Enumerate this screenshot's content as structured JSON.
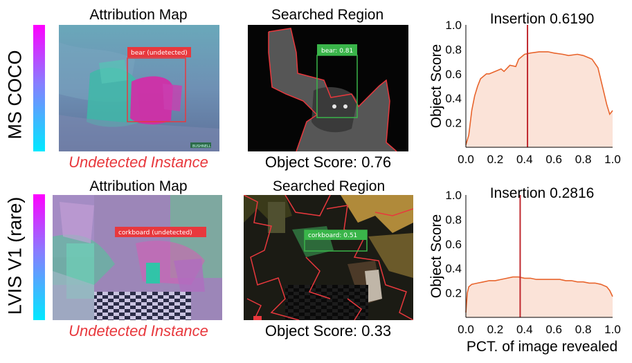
{
  "rows": [
    {
      "label": "MS COCO",
      "attr_title": "Attribution Map",
      "search_title": "Searched Region",
      "attr_box_label": "bear (undetected)",
      "search_box_label": "bear: 0.81",
      "attr_caption": "Undetected Instance",
      "search_caption": "Object Score: 0.76",
      "watermark": "BUSHNELL"
    },
    {
      "label": "LVIS V1 (rare)",
      "attr_title": "Attribution Map",
      "search_title": "Searched Region",
      "attr_box_label": "corkboard (undetected)",
      "search_box_label": "corkboard: 0.51",
      "attr_caption": "Undetected Instance",
      "search_caption": "Object Score: 0.33",
      "watermark": ""
    }
  ],
  "colors": {
    "accent_red": "#e8383d",
    "box_green": "#3ab54a",
    "curve": "#e8642c",
    "fill": "#fbe3d8",
    "vline": "#c0282e"
  },
  "chart_data": [
    {
      "type": "area",
      "title": "Insertion 0.6190",
      "ylabel": "Object Score",
      "xlabel": "",
      "xlim": [
        0,
        1
      ],
      "ylim": [
        0,
        1
      ],
      "xticks": [
        "0.0",
        "0.2",
        "0.4",
        "0.6",
        "0.8",
        "1.0"
      ],
      "yticks": [
        "0.2",
        "0.4",
        "0.6",
        "0.8",
        "1.0"
      ],
      "vline_x": 0.42,
      "x": [
        0.0,
        0.02,
        0.04,
        0.06,
        0.08,
        0.1,
        0.14,
        0.16,
        0.2,
        0.24,
        0.26,
        0.3,
        0.34,
        0.36,
        0.4,
        0.44,
        0.5,
        0.56,
        0.6,
        0.66,
        0.7,
        0.76,
        0.8,
        0.84,
        0.86,
        0.9,
        0.94,
        0.96,
        0.98,
        1.0
      ],
      "y": [
        0.02,
        0.1,
        0.3,
        0.42,
        0.5,
        0.56,
        0.6,
        0.6,
        0.62,
        0.64,
        0.62,
        0.67,
        0.66,
        0.72,
        0.76,
        0.77,
        0.78,
        0.78,
        0.77,
        0.76,
        0.75,
        0.76,
        0.75,
        0.73,
        0.72,
        0.65,
        0.45,
        0.35,
        0.27,
        0.3
      ]
    },
    {
      "type": "area",
      "title": "Insertion 0.2816",
      "ylabel": "Object Score",
      "xlabel": "PCT. of image revealed",
      "xlim": [
        0,
        1
      ],
      "ylim": [
        0,
        1
      ],
      "xticks": [
        "0.0",
        "0.2",
        "0.4",
        "0.6",
        "0.8",
        "1.0"
      ],
      "yticks": [
        "0.2",
        "0.4",
        "0.6",
        "0.8",
        "1.0"
      ],
      "vline_x": 0.37,
      "x": [
        0.0,
        0.01,
        0.02,
        0.04,
        0.08,
        0.12,
        0.16,
        0.2,
        0.24,
        0.28,
        0.32,
        0.36,
        0.4,
        0.44,
        0.48,
        0.52,
        0.56,
        0.6,
        0.64,
        0.68,
        0.72,
        0.76,
        0.8,
        0.84,
        0.88,
        0.92,
        0.96,
        0.98,
        1.0
      ],
      "y": [
        0.04,
        0.2,
        0.25,
        0.27,
        0.28,
        0.29,
        0.3,
        0.3,
        0.31,
        0.32,
        0.33,
        0.33,
        0.32,
        0.32,
        0.31,
        0.31,
        0.31,
        0.31,
        0.31,
        0.3,
        0.3,
        0.29,
        0.29,
        0.28,
        0.28,
        0.27,
        0.25,
        0.22,
        0.17
      ]
    }
  ]
}
